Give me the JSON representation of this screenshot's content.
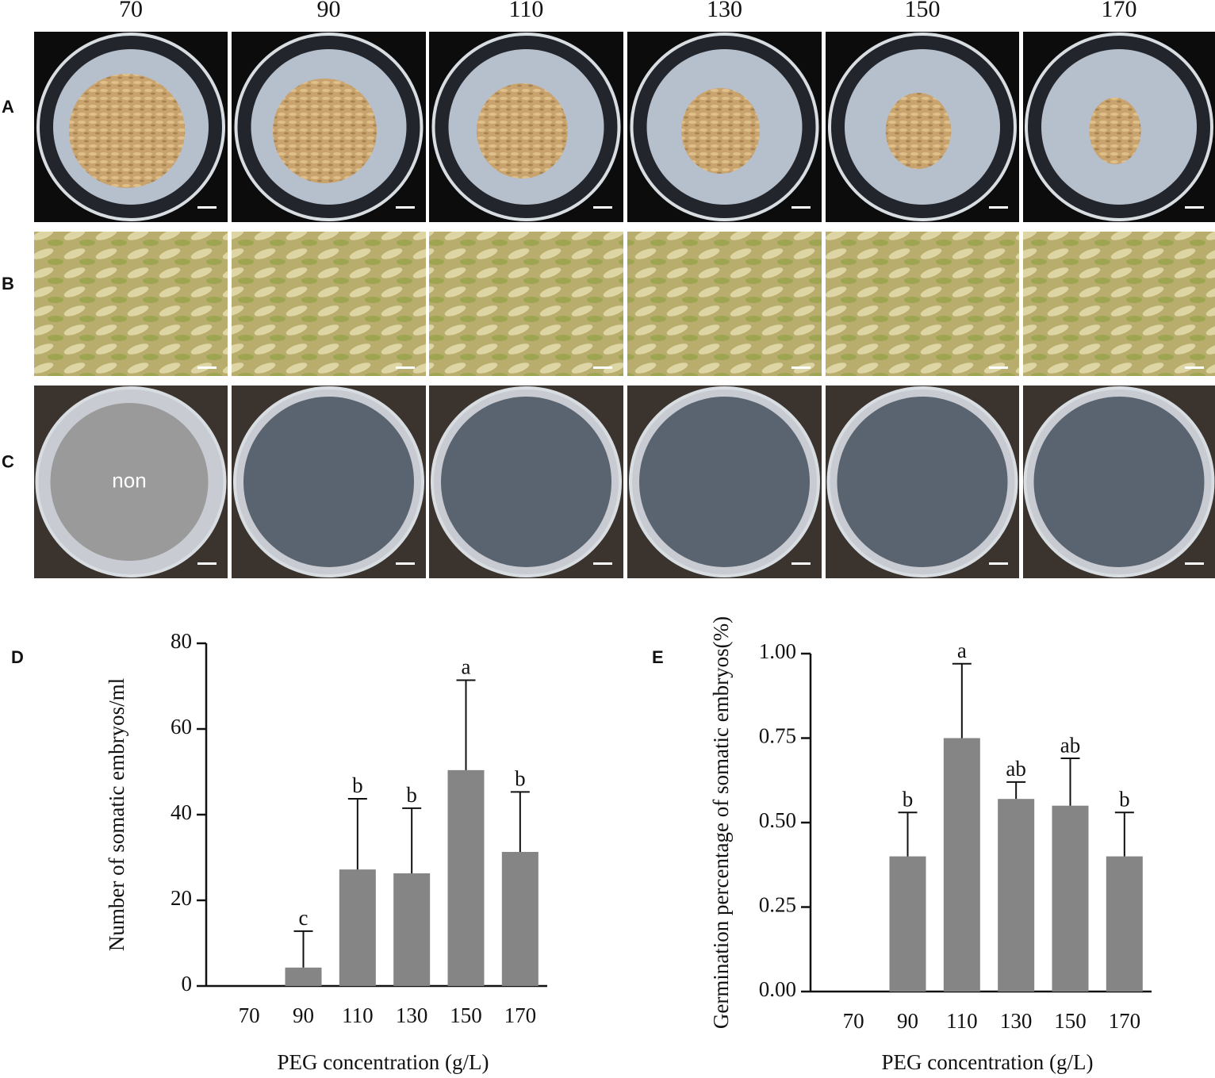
{
  "column_labels": [
    "70",
    "90",
    "110",
    "130",
    "150",
    "170"
  ],
  "row_labels": [
    "A",
    "B",
    "C"
  ],
  "empty_plate_label": "non",
  "chart_data": [
    {
      "type": "bar",
      "panel_label": "D",
      "x_label": "PEG concentration (g/L)",
      "y_label": "Number of somatic embryos/ml",
      "categories": [
        "70",
        "90",
        "110",
        "130",
        "150",
        "170"
      ],
      "values": [
        0,
        4.3,
        27.2,
        26.3,
        50.4,
        31.3
      ],
      "errors": [
        null,
        8.5,
        16.5,
        15.2,
        21,
        14
      ],
      "annotations": [
        null,
        "c",
        "b",
        "b",
        "a",
        "b"
      ],
      "color": "#858585",
      "ylim": [
        0,
        80
      ],
      "yticks": [
        0,
        20,
        40,
        60,
        80
      ]
    },
    {
      "type": "bar",
      "panel_label": "E",
      "x_label": "PEG concentration (g/L)",
      "y_label": "Germination percentage of somatic embryos(%)",
      "categories": [
        "70",
        "90",
        "110",
        "130",
        "150",
        "170"
      ],
      "values": [
        0,
        0.4,
        0.75,
        0.57,
        0.55,
        0.4
      ],
      "errors": [
        null,
        0.13,
        0.22,
        0.05,
        0.14,
        0.13
      ],
      "annotations": [
        null,
        "b",
        "a",
        "ab",
        "ab",
        "b"
      ],
      "color": "#858585",
      "ylim": [
        0,
        1
      ],
      "yticks": [
        {
          "value": 0,
          "label": "0.00"
        },
        {
          "value": 0.25,
          "label": "0.25"
        },
        {
          "value": 0.5,
          "label": "0.50"
        },
        {
          "value": 0.75,
          "label": "0.75"
        },
        {
          "value": 1,
          "label": "1.00"
        }
      ]
    }
  ]
}
